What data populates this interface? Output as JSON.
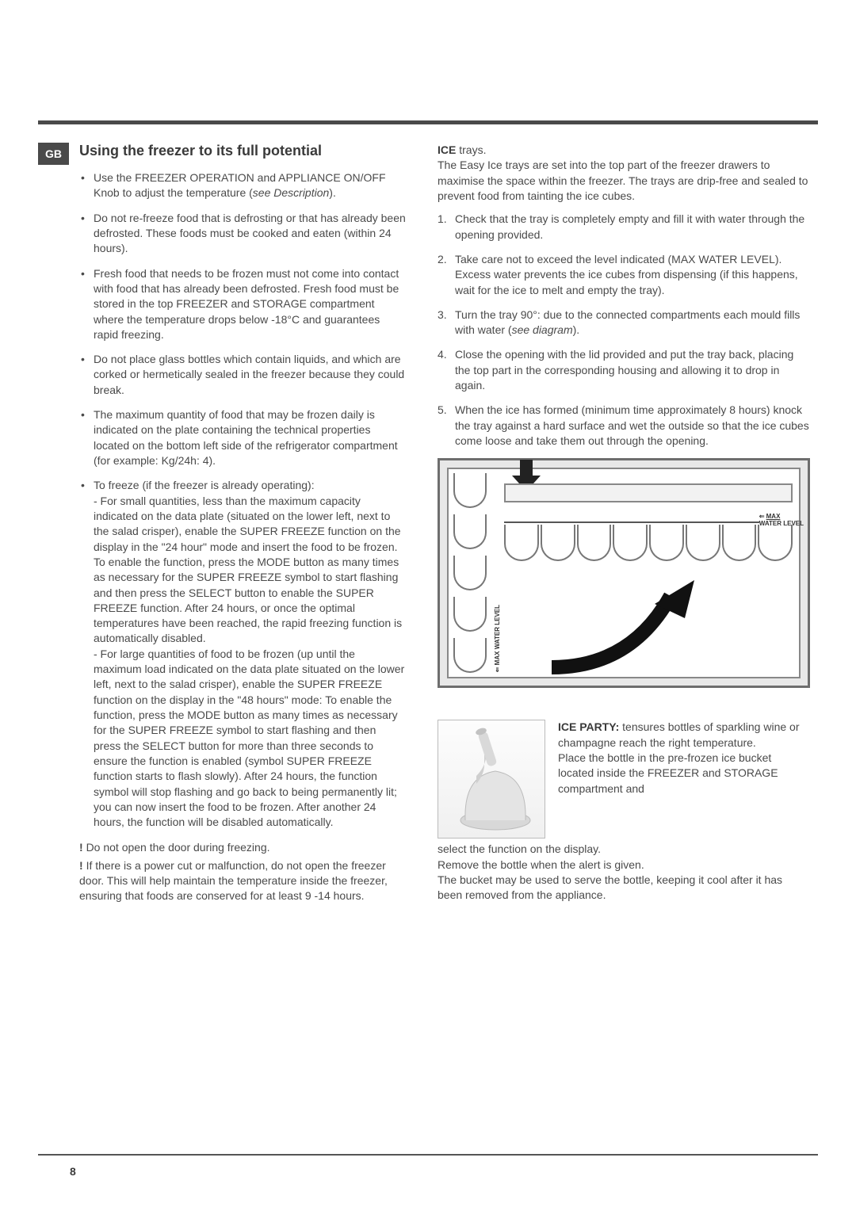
{
  "badge": "GB",
  "page_number": "8",
  "left": {
    "title": "Using the freezer to its full potential",
    "bullets": [
      "Use the FREEZER OPERATION and APPLIANCE ON/OFF Knob to adjust the temperature (<i>see Description</i>).",
      "Do not re-freeze food that is defrosting or that has already been defrosted. These foods must be cooked and eaten (within 24 hours).",
      "Fresh food that needs to be frozen must not come into contact with food that has already been defrosted. Fresh food must be stored in the top FREEZER and STORAGE compartment where the temperature drops below -18°C and guarantees rapid freezing.",
      "Do not place glass bottles which contain liquids, and which are corked or hermetically sealed in the freezer because they could break.",
      "The maximum quantity of food that may be frozen daily is indicated on the plate containing the technical properties located on the bottom left side of the refrigerator compartment (for example: Kg/24h: 4).",
      "To freeze (if the freezer is already operating):<br>- For small quantities, less than the maximum capacity indicated on the data plate (situated on the lower left, next to the salad crisper), enable the SUPER FREEZE function on the display in the \"24 hour\" mode and insert the food to be frozen. To enable the function, press the MODE button as many times as necessary for the SUPER FREEZE symbol to start flashing and then press the SELECT button to enable the SUPER FREEZE function. After 24 hours, or once the optimal temperatures have been reached, the rapid freezing function is automatically disabled.<br>- For large quantities of food to be frozen (up until the maximum load indicated on the data plate situated on the lower left, next to the salad crisper), enable the SUPER FREEZE function on the display in the \"48 hours\" mode: To enable the function, press the MODE button as many times as necessary for the SUPER FREEZE symbol to start flashing and then press the SELECT button for more than three seconds to ensure the function is enabled (symbol SUPER FREEZE function starts to flash slowly). After 24 hours, the function symbol will stop flashing and go back to being permanently lit; you can now insert the food to be frozen. After another 24 hours, the function will be disabled automatically."
    ],
    "warnings": [
      "Do not open the door during freezing.",
      "If there is a power cut or malfunction, do not open the freezer door. This will help maintain the temperature inside the freezer, ensuring that foods are conserved for at least 9 -14 hours."
    ]
  },
  "right": {
    "ice_heading": "ICE",
    "ice_heading_rest": " trays.",
    "ice_intro": "The Easy Ice trays are set into the top part of the freezer drawers to maximise the space within the freezer. The trays are drip-free and sealed to prevent food from tainting the ice cubes.",
    "steps": [
      "Check that the tray is completely empty and fill it with water through the opening provided.",
      "Take care not to exceed the level indicated (MAX WATER LEVEL). Excess water prevents the ice cubes from dispensing (if this happens, wait for the ice to melt and empty the tray).",
      "Turn the tray 90°: due to the connected compartments each mould fills with water (<i>see diagram</i>).",
      "Close the opening with the lid provided and put the tray back, placing the top part in the corresponding housing and allowing it to drop in again.",
      "When the ice has formed (minimum time approximately 8 hours) knock the tray against a hard surface and wet the outside so that the ice cubes come loose and take them out through the opening."
    ],
    "diagram_labels": {
      "max": "MAX",
      "water_level": "WATER LEVEL"
    },
    "ice_party_title": "ICE PARTY:",
    "ice_party_text_side": " tensures bottles of sparkling wine or champagne reach the right temperature.\nPlace the bottle in the pre-frozen ice bucket located inside the FREEZER and STORAGE compartment and",
    "ice_party_text_below": "select the function on the display.\nRemove the bottle when the alert is given.\nThe bucket may be used to serve the bottle, keeping it cool after it has been removed from the appliance."
  }
}
